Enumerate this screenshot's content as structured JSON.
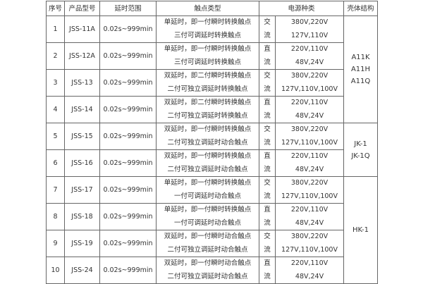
{
  "headers": [
    "序号",
    "产品型号",
    "延时范围",
    "触点类型",
    "电源种类",
    "壳体结构"
  ],
  "rows": [
    {
      "no": "1",
      "model": "JSS-11A",
      "range": "0.02s~999min",
      "contact": [
        "单延时，即一付瞬时转换触点",
        "三付可调延时转换触点"
      ],
      "power": [
        "交",
        "流"
      ],
      "voltage": [
        "380V,220V",
        "127V,110V"
      ]
    },
    {
      "no": "2",
      "model": "JSS-12A",
      "range": "0.02s~999min",
      "contact": [
        "单延时，即一付瞬时转换触点",
        "三付可调延时转换触点"
      ],
      "power": [
        "直",
        "流"
      ],
      "voltage": [
        "220V,110V",
        "48V,24V"
      ]
    },
    {
      "no": "3",
      "model": "JSS-13",
      "range": "0.02s~999min",
      "contact": [
        "双延时，即二付瞬时转换触点",
        "二付可独立调延时转换触点"
      ],
      "power": [
        "交",
        "流"
      ],
      "voltage": [
        "380V,220V",
        "127V,110V,100V"
      ]
    },
    {
      "no": "4",
      "model": "JSS-14",
      "range": "0.02s~999min",
      "contact": [
        "双延时，即二付瞬时转换触点",
        "二付可独立调延时转换触点"
      ],
      "power": [
        "直",
        "流"
      ],
      "voltage": [
        "220V,110V",
        "48V,24V"
      ]
    },
    {
      "no": "5",
      "model": "JSS-15",
      "range": "0.02s~999min",
      "contact": [
        "双延时，即一付瞬时转换触点",
        "二付可独立调延时动合触点"
      ],
      "power": [
        "交",
        "流"
      ],
      "voltage": [
        "380V,220V",
        "127V,110V,100V"
      ]
    },
    {
      "no": "6",
      "model": "JSS-16",
      "range": "0.02s~999min",
      "contact": [
        "双延时，即一付瞬时转换触点",
        "二付可独立调延时动合触点"
      ],
      "power": [
        "直",
        "流"
      ],
      "voltage": [
        "220V,110V",
        "48V,24V"
      ]
    },
    {
      "no": "7",
      "model": "JSS-17",
      "range": "0.02s~999min",
      "contact": [
        "单延时，即一付瞬时转换触点",
        "一付可调延时动合触点"
      ],
      "power": [
        "交",
        "流"
      ],
      "voltage": [
        "380V,220V",
        "127V,110V,100V"
      ]
    },
    {
      "no": "8",
      "model": "JSS-18",
      "range": "0.02s~999min",
      "contact": [
        "单延时，即一付瞬时转换触点",
        "一付可调延时动合触点"
      ],
      "power": [
        "直",
        "流"
      ],
      "voltage": [
        "220V,110V",
        "48V,24V"
      ]
    },
    {
      "no": "9",
      "model": "JSS-19",
      "range": "0.02s~999min",
      "contact": [
        "双延时，即一付瞬时动合触点",
        "二付可独立调延时动合触点"
      ],
      "power": [
        "交",
        "流"
      ],
      "voltage": [
        "380V,220V",
        "127V,110V,100V"
      ]
    },
    {
      "no": "10",
      "model": "JSS-24",
      "range": "0.02s~999min",
      "contact": [
        "双延时，即一付瞬时动合触点",
        "二付可独立调延时动合触点"
      ],
      "power": [
        "直",
        "流"
      ],
      "voltage": [
        "220V,110V",
        "48V,24V"
      ]
    }
  ],
  "shells": [
    {
      "lines": [
        "A11K",
        "A11H",
        "A11Q"
      ]
    },
    {
      "lines": [
        "JK-1",
        "JK-1Q"
      ]
    },
    {
      "lines": [
        "HK-1"
      ]
    }
  ]
}
